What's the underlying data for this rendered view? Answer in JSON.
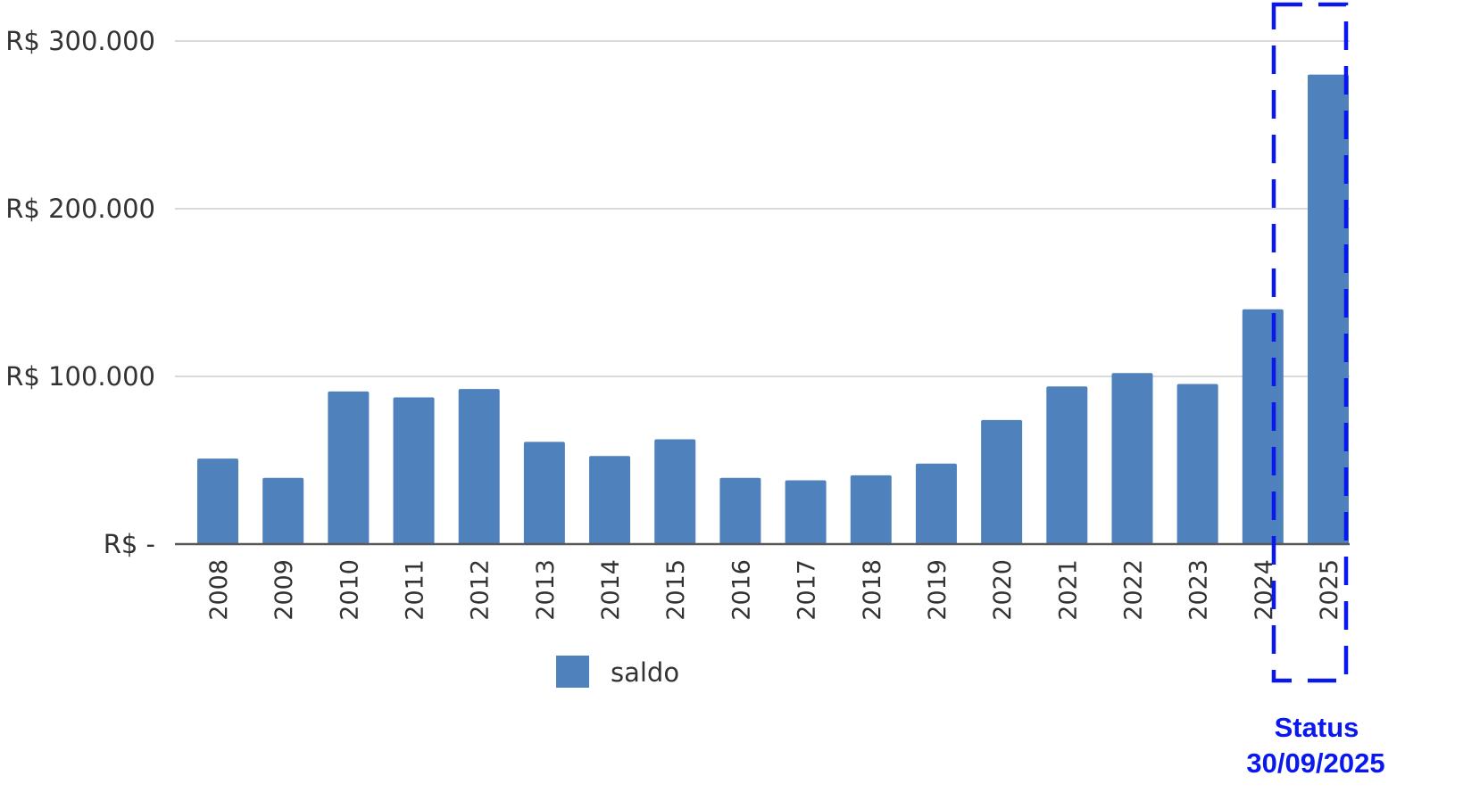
{
  "chart_data": {
    "type": "bar",
    "categories": [
      "2008",
      "2009",
      "2010",
      "2011",
      "2012",
      "2013",
      "2014",
      "2015",
      "2016",
      "2017",
      "2018",
      "2019",
      "2020",
      "2021",
      "2022",
      "2023",
      "2024",
      "2025"
    ],
    "series": [
      {
        "name": "saldo",
        "values": [
          51000,
          39500,
          91000,
          87500,
          92500,
          61000,
          52500,
          62500,
          39500,
          38000,
          41000,
          48000,
          74000,
          94000,
          102000,
          95500,
          140000,
          280000
        ],
        "color": "#4F81BD"
      }
    ],
    "ylim": [
      0,
      300000
    ],
    "yticks": [
      {
        "value": 0,
        "label": "R$ -"
      },
      {
        "value": 100000,
        "label": "R$ 100.000"
      },
      {
        "value": 200000,
        "label": "R$ 200.000"
      },
      {
        "value": 300000,
        "label": "R$ 300.000"
      }
    ],
    "grid": true,
    "legend": {
      "position": "bottom",
      "label": "saldo"
    },
    "highlight": {
      "category": "2025",
      "color": "#0A18F0",
      "label_line1": "Status",
      "label_line2": "30/09/2025"
    },
    "xlabel": "",
    "ylabel": ""
  }
}
